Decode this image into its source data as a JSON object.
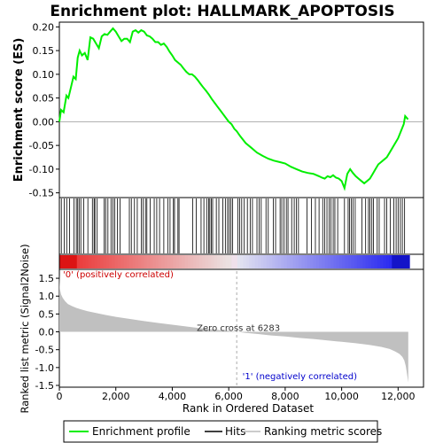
{
  "chart_data": {
    "type": "line",
    "title": "Enrichment plot: HALLMARK_APOPTOSIS",
    "top_panel": {
      "ylabel": "Enrichment score (ES)",
      "ylim": [
        -0.16,
        0.21
      ],
      "yticks": [
        -0.15,
        -0.1,
        -0.05,
        0.0,
        0.05,
        0.1,
        0.15,
        0.2
      ],
      "ytick_labels": [
        "-0.15",
        "-0.10",
        "-0.05",
        "0.00",
        "0.05",
        "0.10",
        "0.15",
        "0.20"
      ],
      "series": [
        {
          "name": "Enrichment profile",
          "color": "#00ee00",
          "x": [
            0,
            60,
            150,
            250,
            320,
            420,
            500,
            580,
            650,
            720,
            800,
            900,
            1000,
            1100,
            1200,
            1300,
            1400,
            1500,
            1600,
            1700,
            1800,
            1900,
            2000,
            2100,
            2200,
            2300,
            2400,
            2500,
            2600,
            2700,
            2800,
            2900,
            3000,
            3100,
            3200,
            3300,
            3400,
            3500,
            3600,
            3700,
            3800,
            3900,
            4000,
            4100,
            4200,
            4300,
            4400,
            4500,
            4600,
            4700,
            4800,
            4900,
            5000,
            5100,
            5200,
            5300,
            5400,
            5500,
            5600,
            5700,
            5800,
            5900,
            6000,
            6100,
            6200,
            6283,
            6400,
            6600,
            6800,
            7000,
            7200,
            7400,
            7600,
            7800,
            8000,
            8200,
            8400,
            8600,
            8800,
            9000,
            9200,
            9300,
            9400,
            9500,
            9600,
            9700,
            9800,
            9900,
            10000,
            10100,
            10200,
            10300,
            10400,
            10500,
            10600,
            10700,
            10800,
            10900,
            11000,
            11100,
            11200,
            11300,
            11400,
            11500,
            11600,
            11700,
            11800,
            11900,
            12000,
            12100,
            12200,
            12250,
            12350
          ],
          "y": [
            0.0,
            0.025,
            0.02,
            0.055,
            0.05,
            0.075,
            0.095,
            0.09,
            0.135,
            0.15,
            0.14,
            0.145,
            0.13,
            0.178,
            0.175,
            0.165,
            0.155,
            0.18,
            0.185,
            0.183,
            0.19,
            0.197,
            0.19,
            0.18,
            0.17,
            0.175,
            0.175,
            0.168,
            0.19,
            0.193,
            0.188,
            0.193,
            0.19,
            0.182,
            0.18,
            0.175,
            0.168,
            0.168,
            0.162,
            0.165,
            0.158,
            0.148,
            0.14,
            0.13,
            0.125,
            0.12,
            0.112,
            0.105,
            0.1,
            0.1,
            0.095,
            0.088,
            0.08,
            0.072,
            0.065,
            0.057,
            0.048,
            0.04,
            0.032,
            0.024,
            0.016,
            0.008,
            0.0,
            -0.005,
            -0.015,
            -0.02,
            -0.03,
            -0.045,
            -0.055,
            -0.065,
            -0.072,
            -0.078,
            -0.082,
            -0.085,
            -0.088,
            -0.095,
            -0.1,
            -0.105,
            -0.108,
            -0.11,
            -0.115,
            -0.118,
            -0.12,
            -0.115,
            -0.117,
            -0.113,
            -0.118,
            -0.12,
            -0.125,
            -0.14,
            -0.11,
            -0.1,
            -0.108,
            -0.115,
            -0.12,
            -0.125,
            -0.13,
            -0.125,
            -0.12,
            -0.11,
            -0.1,
            -0.09,
            -0.085,
            -0.08,
            -0.075,
            -0.065,
            -0.055,
            -0.045,
            -0.035,
            -0.02,
            -0.005,
            0.012,
            0.005
          ]
        }
      ]
    },
    "hits_panel": {
      "series_name": "Hits",
      "hit_ranks": [
        70,
        170,
        260,
        360,
        520,
        600,
        650,
        700,
        760,
        860,
        1010,
        1170,
        1230,
        1260,
        1340,
        1590,
        1640,
        1720,
        1830,
        1900,
        1960,
        2060,
        2150,
        2480,
        2550,
        2660,
        2760,
        2900,
        2970,
        3050,
        3100,
        3220,
        3360,
        3450,
        3550,
        3700,
        3840,
        3920,
        4040,
        4080,
        4200,
        4240,
        4720,
        4850,
        5020,
        5120,
        5220,
        5290,
        5330,
        5380,
        5430,
        5560,
        5650,
        5790,
        5880,
        5960,
        6020,
        6080,
        6140,
        6320,
        6390,
        6460,
        6550,
        6660,
        6760,
        6840,
        7000,
        7080,
        7150,
        7320,
        7400,
        7580,
        7660,
        7820,
        7880,
        7960,
        8040,
        8100,
        8230,
        8320,
        8400,
        8470,
        8770,
        8930,
        9070,
        9200,
        9330,
        9400,
        9480,
        9560,
        9620,
        9700,
        9760,
        9860,
        10100,
        10230,
        10280,
        10340,
        10400,
        10480,
        10720,
        10850,
        10950,
        11000,
        11070,
        11130,
        11260,
        11330,
        11520,
        11600,
        11720,
        11850,
        11930,
        12000,
        12080,
        12150,
        12230
      ]
    },
    "rank_bar": {
      "total": 12400,
      "zero_cross": 6283
    },
    "bottom_panel": {
      "ylabel": "Ranked list metric (Signal2Noise)",
      "xlabel": "Rank in Ordered Dataset",
      "series_name": "Ranking metric scores",
      "ylim": [
        -1.55,
        1.75
      ],
      "yticks": [
        -1.5,
        -1.0,
        -0.5,
        0.0,
        0.5,
        1.0,
        1.5
      ],
      "ytick_labels": [
        "-1.5",
        "-1.0",
        "-0.5",
        "0.0",
        "0.5",
        "1.0",
        "1.5"
      ],
      "xlim": [
        0,
        12900
      ],
      "xticks": [
        0,
        2000,
        4000,
        6000,
        8000,
        10000,
        12000
      ],
      "xtick_labels": [
        "0",
        "2,000",
        "4,000",
        "6,000",
        "8,000",
        "10,000",
        "12,000"
      ],
      "metric_x": [
        0,
        20,
        60,
        120,
        200,
        300,
        450,
        600,
        800,
        1000,
        1300,
        1600,
        2000,
        2500,
        3000,
        3500,
        4000,
        4500,
        5000,
        5500,
        6000,
        6283,
        6600,
        7000,
        7500,
        8000,
        8500,
        9000,
        9500,
        10000,
        10500,
        11000,
        11400,
        11700,
        11900,
        12050,
        12150,
        12220,
        12270,
        12300,
        12330,
        12360
      ],
      "metric_y": [
        1.6,
        1.2,
        1.05,
        0.95,
        0.86,
        0.78,
        0.72,
        0.67,
        0.62,
        0.58,
        0.53,
        0.48,
        0.42,
        0.36,
        0.3,
        0.25,
        0.2,
        0.15,
        0.1,
        0.06,
        0.03,
        0.0,
        -0.03,
        -0.06,
        -0.1,
        -0.13,
        -0.17,
        -0.2,
        -0.24,
        -0.28,
        -0.32,
        -0.37,
        -0.42,
        -0.48,
        -0.55,
        -0.62,
        -0.7,
        -0.8,
        -0.95,
        -1.1,
        -1.25,
        -1.42
      ],
      "zero_cross_label": "Zero cross at 6283",
      "pos_label": "'0' (positively correlated)",
      "neg_label": "'1' (negatively correlated)"
    },
    "legend": {
      "placement": "bottom",
      "items": [
        {
          "label": "Enrichment profile",
          "color": "#00ee00"
        },
        {
          "label": "Hits",
          "color": "#000000"
        },
        {
          "label": "Ranking metric scores",
          "color": "#bbbbbb"
        }
      ]
    }
  }
}
